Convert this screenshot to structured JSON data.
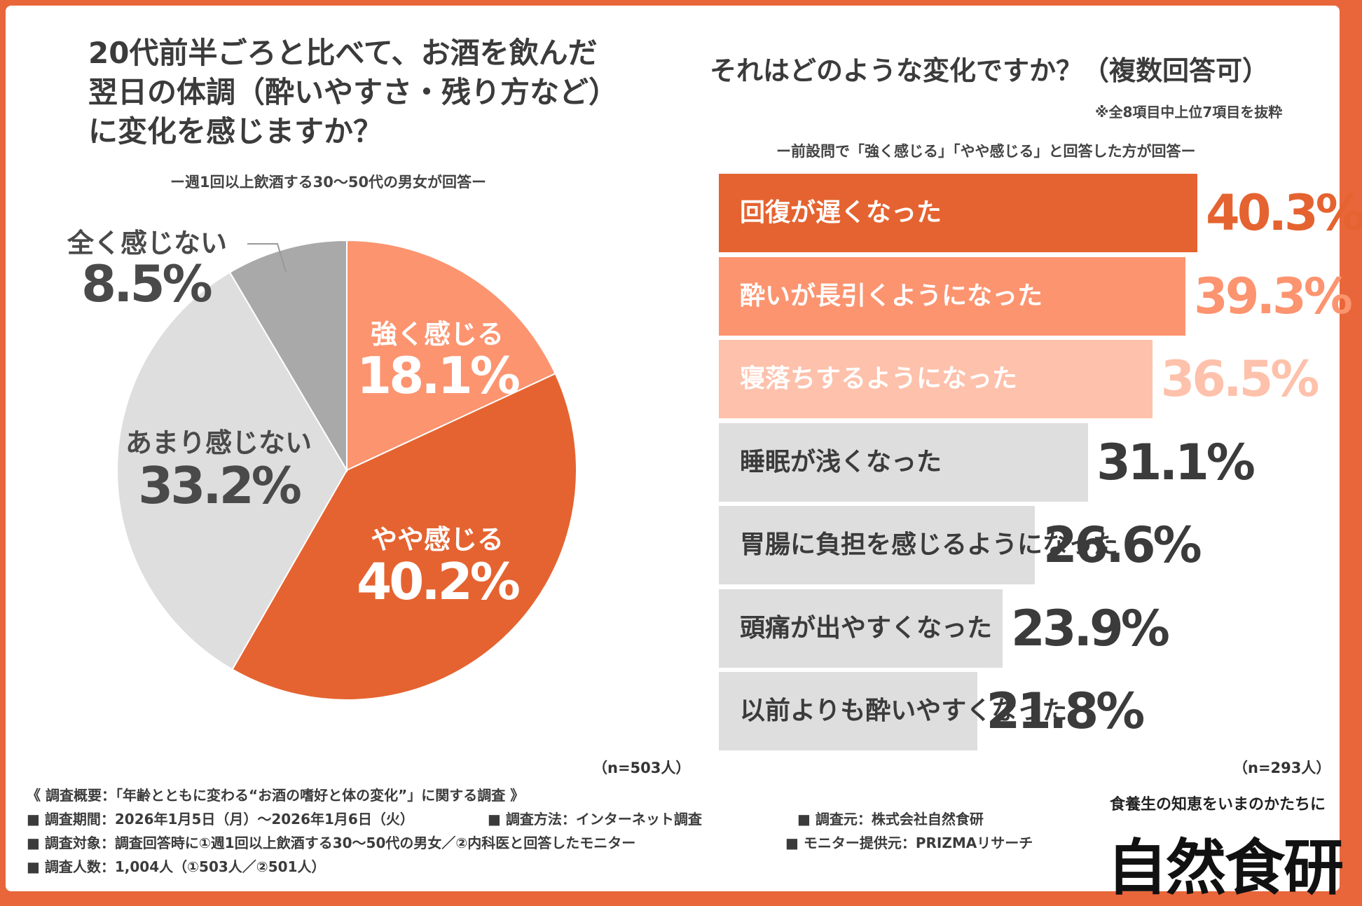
{
  "left": {
    "title_lines": [
      "20代前半ごろと比べて、お酒を飲んだ",
      "翌日の体調（酔いやすさ・残り方など）",
      "に変化を感じますか？"
    ],
    "note": "ー週1回以上飲酒する30〜50代の男女が回答ー",
    "n_label": "（n=503人）"
  },
  "right": {
    "title": "それはどのような変化ですか？（複数回答可）",
    "subnote": "※全8項目中上位7項目を抜粋",
    "note": "ー前設問で「強く感じる」「やや感じる」と回答した方が回答ー",
    "n_label": "（n=293人）"
  },
  "chart_data": [
    {
      "type": "pie",
      "title": "20代前半ごろと比べて、お酒を飲んだ翌日の体調（酔いやすさ・残り方など）に変化を感じますか？",
      "slices": [
        {
          "label": "強く感じる",
          "value": 18.1,
          "display": "18.1%",
          "color": "#fc9470"
        },
        {
          "label": "やや感じる",
          "value": 40.2,
          "display": "40.2%",
          "color": "#e56330"
        },
        {
          "label": "あまり感じない",
          "value": 33.2,
          "display": "33.2%",
          "color": "#dedede"
        },
        {
          "label": "全く感じない",
          "value": 8.5,
          "display": "8.5%",
          "color": "#a9a9a9"
        }
      ]
    },
    {
      "type": "bar",
      "orientation": "horizontal",
      "title": "それはどのような変化ですか？（複数回答可）",
      "xlim": [
        0,
        100
      ],
      "bars": [
        {
          "label": "回復が遅くなった",
          "value": 40.3,
          "display": "40.3%",
          "color": "#e56330",
          "label_color": "#ffffff",
          "value_color": "#e56330"
        },
        {
          "label": "酔いが長引くようになった",
          "value": 39.3,
          "display": "39.3%",
          "color": "#fc9470",
          "label_color": "#ffffff",
          "value_color": "#fc9470"
        },
        {
          "label": "寝落ちするようになった",
          "value": 36.5,
          "display": "36.5%",
          "color": "#fec1ab",
          "label_color": "#ffffff",
          "value_color": "#fec1ab"
        },
        {
          "label": "睡眠が浅くなった",
          "value": 31.1,
          "display": "31.1%",
          "color": "#dedede",
          "label_color": "#3b3b3b",
          "value_color": "#3b3b3b"
        },
        {
          "label": "胃腸に負担を感じるようになった",
          "value": 26.6,
          "display": "26.6%",
          "color": "#dedede",
          "label_color": "#3b3b3b",
          "value_color": "#3b3b3b"
        },
        {
          "label": "頭痛が出やすくなった",
          "value": 23.9,
          "display": "23.9%",
          "color": "#dedede",
          "label_color": "#3b3b3b",
          "value_color": "#3b3b3b"
        },
        {
          "label": "以前よりも酔いやすくなった",
          "value": 21.8,
          "display": "21.8%",
          "color": "#dedede",
          "label_color": "#3b3b3b",
          "value_color": "#3b3b3b"
        }
      ]
    }
  ],
  "survey": {
    "heading": "《 調査概要：「年齢とともに変わる“お酒の嗜好と体の変化”」に関する調査 》",
    "period": "■ 調査期間：2026年1月5日（月）〜2026年1月6日（火）",
    "method": "■ 調査方法：インターネット調査",
    "source": "■ 調査元：株式会社自然食研",
    "target": "■ 調査対象：調査回答時に①週1回以上飲酒する30〜50代の男女／②内科医と回答したモニター",
    "provider": "■ モニター提供元：PRIZMAリサーチ",
    "count": "■ 調査人数：1,004人（①503人／②501人）"
  },
  "brand": {
    "tagline": "食養生の知恵をいまのかたちに",
    "name": "自然食研"
  }
}
